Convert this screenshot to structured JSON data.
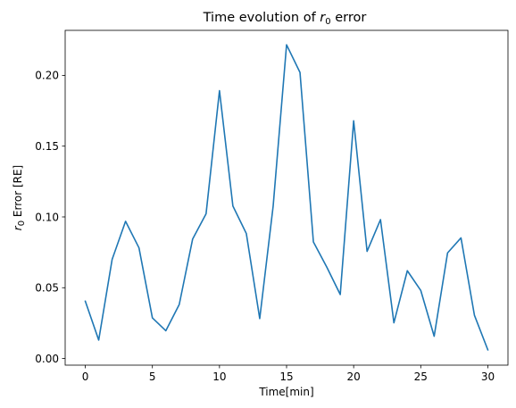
{
  "chart_data": {
    "type": "line",
    "title": {
      "prefix": "Time evolution of ",
      "var": "r",
      "sub": "0",
      "suffix": " error"
    },
    "xlabel": "Time[min]",
    "ylabel": {
      "var": "r",
      "sub": "0",
      "suffix": " Error [RE]"
    },
    "xlim": [
      -1.5,
      31.5
    ],
    "ylim": [
      -0.0047,
      0.2318
    ],
    "xticks": [
      0,
      5,
      10,
      15,
      20,
      25,
      30
    ],
    "xtick_labels": [
      "0",
      "5",
      "10",
      "15",
      "20",
      "25",
      "30"
    ],
    "yticks": [
      0.0,
      0.05,
      0.1,
      0.15,
      0.2
    ],
    "ytick_labels": [
      "0.00",
      "0.05",
      "0.10",
      "0.15",
      "0.20"
    ],
    "grid": false,
    "series": [
      {
        "color": "#1f77b4",
        "x": [
          0,
          1,
          2,
          3,
          4,
          5,
          6,
          7,
          8,
          9,
          10,
          11,
          12,
          13,
          14,
          15,
          16,
          17,
          18,
          19,
          20,
          21,
          22,
          23,
          24,
          25,
          26,
          27,
          28,
          29,
          30
        ],
        "y": [
          0.0405,
          0.013,
          0.07,
          0.0969,
          0.0782,
          0.0287,
          0.0196,
          0.0381,
          0.0844,
          0.1022,
          0.1892,
          0.1077,
          0.0883,
          0.0282,
          0.1076,
          0.2216,
          0.2021,
          0.0823,
          0.0645,
          0.0452,
          0.1679,
          0.0757,
          0.0981,
          0.0252,
          0.062,
          0.0481,
          0.0157,
          0.0746,
          0.0852,
          0.0306,
          0.0061
        ]
      }
    ]
  }
}
